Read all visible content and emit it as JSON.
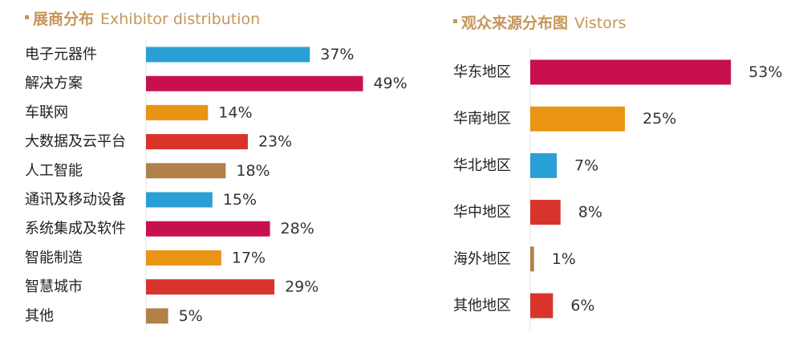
{
  "chart_data": [
    {
      "type": "bar",
      "orientation": "horizontal",
      "title": "展商分布",
      "subtitle": "Exhibitor distribution",
      "categories": [
        "电子元器件",
        "解决方案",
        "车联网",
        "大数据及云平台",
        "人工智能",
        "通讯及移动设备",
        "系统集成及软件",
        "智能制造",
        "智慧城市",
        "其他"
      ],
      "values": [
        37,
        49,
        14,
        23,
        18,
        15,
        28,
        17,
        29,
        5
      ],
      "value_labels": [
        "37%",
        "49%",
        "14%",
        "23%",
        "18%",
        "15%",
        "28%",
        "17%",
        "29%",
        "5%"
      ],
      "colors": [
        "#2a9fd6",
        "#c8114c",
        "#ea9414",
        "#d9342c",
        "#b0814a",
        "#2a9fd6",
        "#c8114c",
        "#ea9414",
        "#d9342c",
        "#b0814a"
      ],
      "xlabel": "",
      "ylabel": "",
      "grid": false,
      "legend": "none"
    },
    {
      "type": "bar",
      "orientation": "horizontal",
      "title": "观众来源分布图",
      "subtitle": "Vistors",
      "categories": [
        "华东地区",
        "华南地区",
        "华北地区",
        "华中地区",
        "海外地区",
        "其他地区"
      ],
      "values": [
        53,
        25,
        7,
        8,
        1,
        6
      ],
      "value_labels": [
        "53%",
        "25%",
        "7%",
        "8%",
        "1%",
        "6%"
      ],
      "colors": [
        "#c8114c",
        "#ea9414",
        "#2a9fd6",
        "#d9342c",
        "#b0814a",
        "#d9342c"
      ],
      "xlabel": "",
      "ylabel": "",
      "grid": false,
      "legend": "none"
    }
  ]
}
